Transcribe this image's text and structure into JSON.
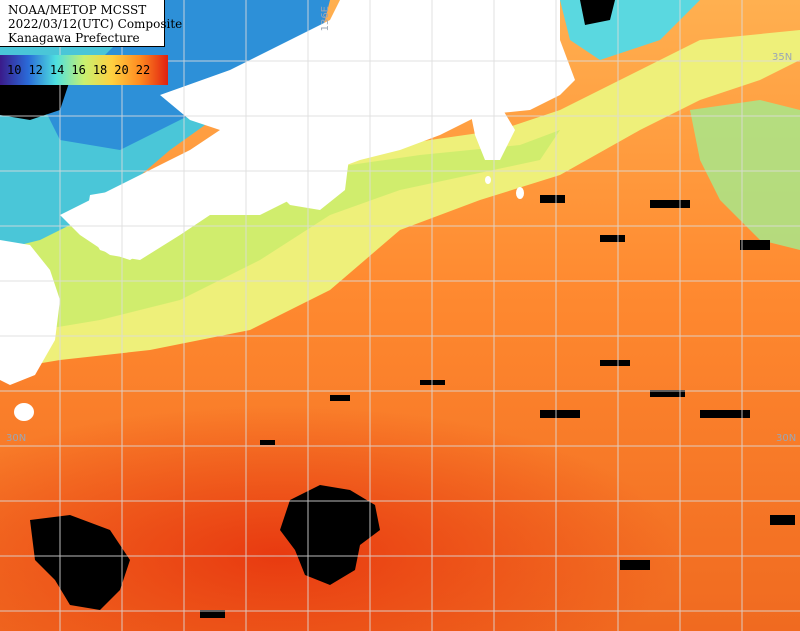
{
  "title": {
    "line1": "NOAA/METOP MCSST",
    "line2": "2022/03/12(UTC) Composite",
    "line3": "Kanagawa Prefecture"
  },
  "scale": {
    "labels": [
      "10",
      "12",
      "14",
      "16",
      "18",
      "20",
      "22"
    ],
    "colors": [
      "#3a1a8a",
      "#2a6ad8",
      "#4ee0e0",
      "#c8f070",
      "#ffd040",
      "#ff8a20",
      "#e02010"
    ]
  },
  "coordinates": {
    "lon_136": "136E",
    "lat_35_right": "35N",
    "lat_30_left": "30N",
    "lat_30_right": "30N"
  },
  "colors": {
    "land": "#ffffff",
    "cloud": "#000000",
    "warm": "#e8501a",
    "mid": "#ff9a3a",
    "cool": "#f0e070",
    "cold": "#5ad0f0",
    "grid": "#dcdcdc"
  }
}
